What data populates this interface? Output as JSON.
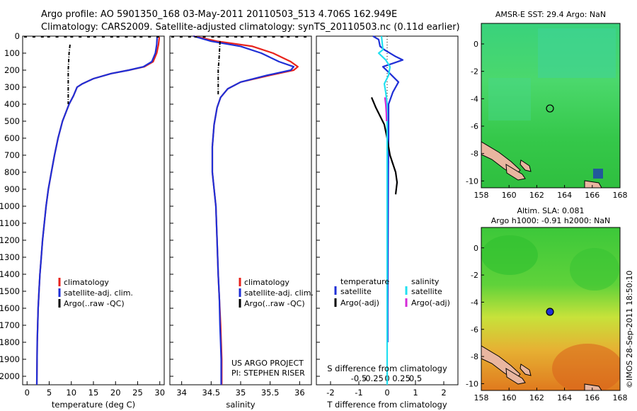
{
  "header": {
    "line1": "Argo profile: AO 5901350_168 03-May-2011 20110503_513 4.706S 162.949E",
    "line2": "Climatology: CARS2009. Satellite-adjusted climatology: synTS_20110503.nc (0.11d earlier)"
  },
  "colors": {
    "climatology": "#e8231c",
    "satellite": "#1f2fd6",
    "argo": "#000000",
    "salinity_satellite": "#22e0f0",
    "salinity_argo": "#d52bd8"
  },
  "chart_data": [
    {
      "id": "temperature",
      "type": "line",
      "xlabel": "temperature (deg C)",
      "ylabel": "",
      "xlim": [
        -1,
        31
      ],
      "ylim": [
        2050,
        0
      ],
      "xticks": [
        0,
        5,
        10,
        15,
        20,
        25,
        30
      ],
      "yticks": [
        0,
        100,
        200,
        300,
        400,
        500,
        600,
        700,
        800,
        900,
        1000,
        1100,
        1200,
        1300,
        1400,
        1500,
        1600,
        1700,
        1800,
        1900,
        2000
      ],
      "legend": [
        "climatology",
        "satellite-adj. clim.",
        "Argo(..raw -QC)"
      ],
      "series": [
        {
          "name": "climatology",
          "color": "#e8231c",
          "x": [
            29.9,
            29.7,
            29.3,
            28.5,
            26.5,
            23,
            19,
            15,
            12.5,
            11.3,
            10.5,
            9.5,
            8.0,
            7.0,
            6.2,
            5.5,
            4.8,
            4.3,
            3.9,
            3.5,
            3.2,
            2.9,
            2.7,
            2.5,
            2.3,
            2.2
          ],
          "y": [
            5,
            50,
            100,
            150,
            180,
            200,
            220,
            250,
            280,
            300,
            350,
            400,
            500,
            600,
            700,
            800,
            900,
            1000,
            1100,
            1200,
            1300,
            1400,
            1500,
            1600,
            1800,
            2050
          ]
        },
        {
          "name": "satellite-adj. clim.",
          "color": "#1f2fd6",
          "x": [
            29.4,
            29.3,
            29.0,
            28.2,
            26.3,
            23,
            19,
            15,
            12.5,
            11.3,
            10.5,
            9.5,
            8.0,
            7.0,
            6.2,
            5.5,
            4.8,
            4.3,
            3.9,
            3.5,
            3.2,
            2.9,
            2.7,
            2.5,
            2.3,
            2.2
          ],
          "y": [
            5,
            50,
            100,
            150,
            180,
            200,
            220,
            250,
            280,
            300,
            350,
            400,
            500,
            600,
            700,
            800,
            900,
            1000,
            1100,
            1200,
            1300,
            1400,
            1500,
            1600,
            1800,
            2050
          ]
        },
        {
          "name": "Argo(..raw -QC)",
          "color": "#000000",
          "dash": true,
          "x": [
            9.7,
            9.5,
            9.4,
            9.3,
            9.3,
            9.3,
            9.3,
            9.3
          ],
          "y": [
            50,
            100,
            150,
            200,
            250,
            300,
            350,
            400
          ]
        }
      ]
    },
    {
      "id": "salinity",
      "type": "line",
      "xlabel": "salinity",
      "ylabel": "",
      "xlim": [
        33.8,
        36.2
      ],
      "ylim": [
        2050,
        0
      ],
      "xticks": [
        34,
        34.5,
        35,
        35.5,
        36
      ],
      "legend": [
        "climatology",
        "satellite-adj. clim.",
        "Argo(..raw -QC)"
      ],
      "series": [
        {
          "name": "climatology",
          "color": "#e8231c",
          "x": [
            34.2,
            34.6,
            35.2,
            35.55,
            35.85,
            35.97,
            35.9,
            35.5,
            35.0,
            34.78,
            34.66,
            34.6,
            34.55,
            34.52,
            34.52,
            34.55,
            34.58,
            34.6,
            34.62,
            34.64,
            34.66,
            34.67,
            34.68,
            34.68
          ],
          "y": [
            0,
            30,
            60,
            100,
            150,
            180,
            200,
            230,
            270,
            310,
            360,
            420,
            520,
            650,
            800,
            900,
            1000,
            1200,
            1400,
            1550,
            1700,
            1800,
            1900,
            2050
          ]
        },
        {
          "name": "satellite-adj. clim.",
          "color": "#1f2fd6",
          "x": [
            34.2,
            34.5,
            35.0,
            35.35,
            35.65,
            35.9,
            35.85,
            35.45,
            35.0,
            34.78,
            34.66,
            34.6,
            34.55,
            34.52,
            34.52,
            34.55,
            34.58,
            34.6,
            34.62,
            34.64,
            34.65,
            34.66,
            34.67,
            34.67
          ],
          "y": [
            0,
            30,
            60,
            100,
            150,
            180,
            200,
            230,
            270,
            310,
            360,
            420,
            520,
            650,
            800,
            900,
            1000,
            1200,
            1400,
            1550,
            1700,
            1800,
            1900,
            2050
          ]
        },
        {
          "name": "Argo(..raw -QC)",
          "color": "#000000",
          "dash": true,
          "x": [
            34.65,
            34.64,
            34.63,
            34.62,
            34.62,
            34.62,
            34.62
          ],
          "y": [
            30,
            100,
            150,
            200,
            250,
            300,
            350
          ]
        }
      ],
      "annotation": [
        "US ARGO PROJECT",
        "PI: STEPHEN RISER"
      ]
    },
    {
      "id": "difference",
      "type": "line",
      "xlabel": "T difference from climatology",
      "x2label": "S difference from climatology",
      "xlim": [
        -2.5,
        2.5
      ],
      "ylim": [
        2050,
        0
      ],
      "xticks": [
        -2,
        -1,
        0,
        1,
        2
      ],
      "xtick_labels": [
        "-2",
        "-1",
        "0",
        "1",
        "2"
      ],
      "x2ticks": [
        -0.5,
        -0.25,
        0,
        0.25,
        0.5
      ],
      "x2tick_labels": [
        "-0.5",
        "-0.25",
        "0",
        "0.25",
        "0.5"
      ],
      "legend_temperature": [
        "temperature",
        "satellite",
        "Argo(-adj)"
      ],
      "legend_salinity": [
        "salinity",
        "satellite",
        "Argo(-adj)"
      ],
      "series": [
        {
          "name": "temperature satellite",
          "color": "#1f2fd6",
          "x": [
            -0.5,
            -0.3,
            -0.25,
            -0.1,
            0.3,
            0.55,
            0.2,
            -0.15,
            0.1,
            0.4,
            0.2,
            0.05,
            0.05,
            0.04,
            0.03,
            0.02,
            0.02
          ],
          "y": [
            0,
            20,
            60,
            80,
            120,
            140,
            160,
            180,
            220,
            270,
            330,
            400,
            600,
            800,
            1200,
            1600,
            1800
          ]
        },
        {
          "name": "temperature Argo(-adj)",
          "color": "#000000",
          "x": [
            -0.55,
            -0.4,
            -0.1,
            0.0,
            0.1,
            0.3,
            0.35,
            0.3
          ],
          "y": [
            360,
            420,
            520,
            600,
            700,
            800,
            860,
            930
          ]
        },
        {
          "name": "salinity satellite",
          "color": "#22e0f0",
          "x": [
            -0.2,
            -0.15,
            -0.3,
            -0.05,
            0.1,
            0.05,
            -0.1,
            -0.05,
            0.0,
            0.0,
            0.0,
            0.0,
            0.0
          ],
          "y": [
            0,
            80,
            100,
            140,
            180,
            230,
            280,
            330,
            400,
            600,
            1000,
            1500,
            2050
          ]
        },
        {
          "name": "salinity Argo(-adj)",
          "color": "#d52bd8",
          "x": [
            -0.08,
            -0.05,
            -0.03,
            -0.02
          ],
          "y": [
            360,
            400,
            450,
            500
          ]
        }
      ]
    },
    {
      "id": "sst_map",
      "type": "heatmap",
      "title": "AMSR-E SST: 29.4  Argo: NaN",
      "xlim": [
        158,
        168
      ],
      "ylim": [
        -10.5,
        1.5
      ],
      "xticks": [
        158,
        160,
        162,
        164,
        166,
        168
      ],
      "yticks": [
        0,
        -2,
        -4,
        -6,
        -8,
        -10
      ],
      "marker": {
        "lon": 162.95,
        "lat": -4.71,
        "filled": false
      }
    },
    {
      "id": "sla_map",
      "type": "heatmap",
      "title_line1": "Altim. SLA: 0.081",
      "title_line2": "Argo h1000: -0.91 h2000: NaN",
      "xlim": [
        158,
        168
      ],
      "ylim": [
        -10.5,
        1.5
      ],
      "xticks": [
        158,
        160,
        162,
        164,
        166,
        168
      ],
      "yticks": [
        0,
        -2,
        -4,
        -6,
        -8,
        -10
      ],
      "marker": {
        "lon": 162.95,
        "lat": -4.71,
        "filled": true
      }
    }
  ],
  "footer_stamp": "©IMOS 28-Sep-2011 18:50:10"
}
